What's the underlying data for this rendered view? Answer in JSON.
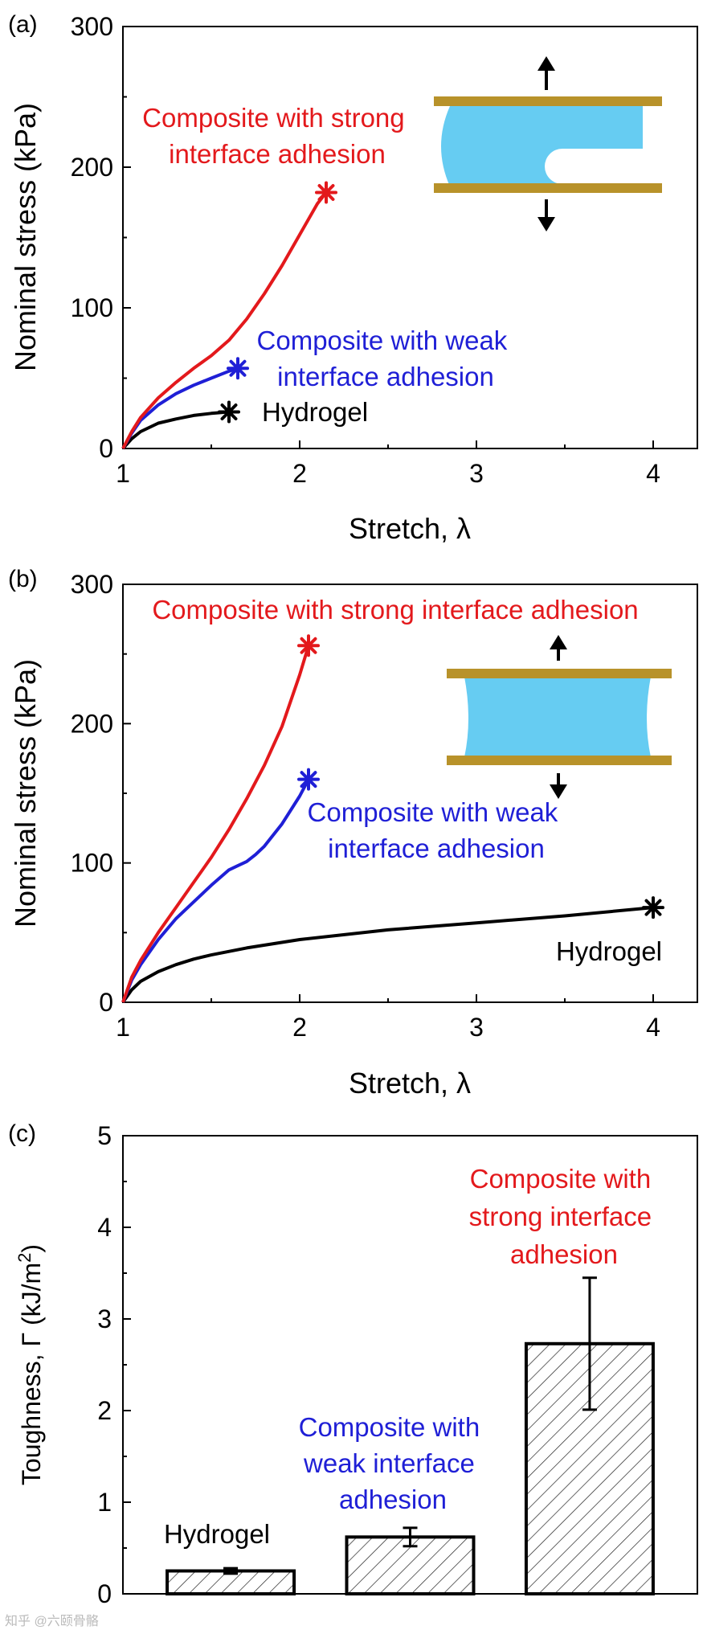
{
  "colors": {
    "strong": "#e3191c",
    "weak": "#1f1fd6",
    "hydrogel": "#000000",
    "plate": "#b8922a",
    "gel": "#66ccf2"
  },
  "watermark": "知乎 @六颐骨骼",
  "chart_data": [
    {
      "panel_label": "(a)",
      "type": "line",
      "xlabel": "Stretch, λ",
      "ylabel": "Nominal stress (kPa)",
      "xlim": [
        1,
        4.25
      ],
      "ylim": [
        0,
        300
      ],
      "xticks": [
        1,
        2,
        3,
        4
      ],
      "yticks": [
        0,
        100,
        200,
        300
      ],
      "series": [
        {
          "name": "Composite with strong interface adhesion",
          "label_lines": [
            "Composite with strong",
            "interface adhesion"
          ],
          "color_key": "strong",
          "x": [
            1,
            1.05,
            1.1,
            1.2,
            1.3,
            1.4,
            1.5,
            1.6,
            1.7,
            1.8,
            1.9,
            2.0,
            2.1,
            2.15
          ],
          "y": [
            0,
            12,
            22,
            36,
            47,
            57,
            66,
            77,
            92,
            110,
            130,
            152,
            174,
            182
          ]
        },
        {
          "name": "Composite with weak interface adhesion",
          "label_lines": [
            "Composite with weak",
            "interface adhesion"
          ],
          "color_key": "weak",
          "x": [
            1,
            1.05,
            1.1,
            1.2,
            1.3,
            1.4,
            1.5,
            1.6,
            1.65
          ],
          "y": [
            0,
            11,
            20,
            31,
            39,
            45,
            50,
            55,
            57
          ]
        },
        {
          "name": "Hydrogel",
          "label_lines": [
            "Hydrogel"
          ],
          "color_key": "hydrogel",
          "x": [
            1,
            1.05,
            1.1,
            1.2,
            1.3,
            1.4,
            1.5,
            1.6
          ],
          "y": [
            0,
            7,
            12,
            18,
            21,
            23.5,
            25,
            26
          ]
        }
      ]
    },
    {
      "panel_label": "(b)",
      "type": "line",
      "xlabel": "Stretch, λ",
      "ylabel": "Nominal stress (kPa)",
      "xlim": [
        1,
        4.25
      ],
      "ylim": [
        0,
        300
      ],
      "xticks": [
        1,
        2,
        3,
        4
      ],
      "yticks": [
        0,
        100,
        200,
        300
      ],
      "series": [
        {
          "name": "Composite with strong interface adhesion",
          "label_lines": [
            "Composite with strong interface adhesion"
          ],
          "color_key": "strong",
          "x": [
            1,
            1.05,
            1.1,
            1.2,
            1.3,
            1.4,
            1.5,
            1.6,
            1.7,
            1.8,
            1.9,
            2.0,
            2.05
          ],
          "y": [
            0,
            18,
            30,
            50,
            68,
            86,
            104,
            124,
            146,
            170,
            198,
            235,
            256
          ]
        },
        {
          "name": "Composite with weak interface adhesion",
          "label_lines": [
            "Composite with weak",
            "interface adhesion"
          ],
          "color_key": "weak",
          "x": [
            1,
            1.05,
            1.1,
            1.2,
            1.3,
            1.4,
            1.5,
            1.6,
            1.65,
            1.7,
            1.75,
            1.8,
            1.9,
            2.0,
            2.05
          ],
          "y": [
            0,
            16,
            27,
            45,
            60,
            72,
            84,
            95,
            98,
            101,
            106,
            112,
            128,
            148,
            160
          ]
        },
        {
          "name": "Hydrogel",
          "label_lines": [
            "Hydrogel"
          ],
          "color_key": "hydrogel",
          "x": [
            1,
            1.05,
            1.1,
            1.2,
            1.3,
            1.4,
            1.5,
            1.7,
            2.0,
            2.5,
            3.0,
            3.5,
            4.0
          ],
          "y": [
            0,
            9,
            15,
            22,
            27,
            31,
            34,
            39,
            45,
            52,
            57,
            62,
            68
          ]
        }
      ]
    },
    {
      "panel_label": "(c)",
      "type": "bar",
      "ylabel": "Toughness, Γ (kJ/m²)",
      "ylabel_main": "Toughness, Γ (kJ/m",
      "ylabel_sup": "2",
      "ylabel_tail": ")",
      "ylim": [
        0,
        5
      ],
      "yticks": [
        0,
        1,
        2,
        3,
        4,
        5
      ],
      "categories": [
        "Hydrogel",
        "Composite with weak interface adhesion",
        "Composite with strong interface adhesion"
      ],
      "label_lines": [
        [
          "Hydrogel"
        ],
        [
          "Composite with",
          "weak interface",
          "adhesion"
        ],
        [
          "Composite with",
          "strong interface",
          "adhesion"
        ]
      ],
      "color_keys": [
        "hydrogel",
        "weak",
        "strong"
      ],
      "values": [
        0.25,
        0.62,
        2.73
      ],
      "errors": [
        0.03,
        0.1,
        0.72
      ]
    }
  ]
}
